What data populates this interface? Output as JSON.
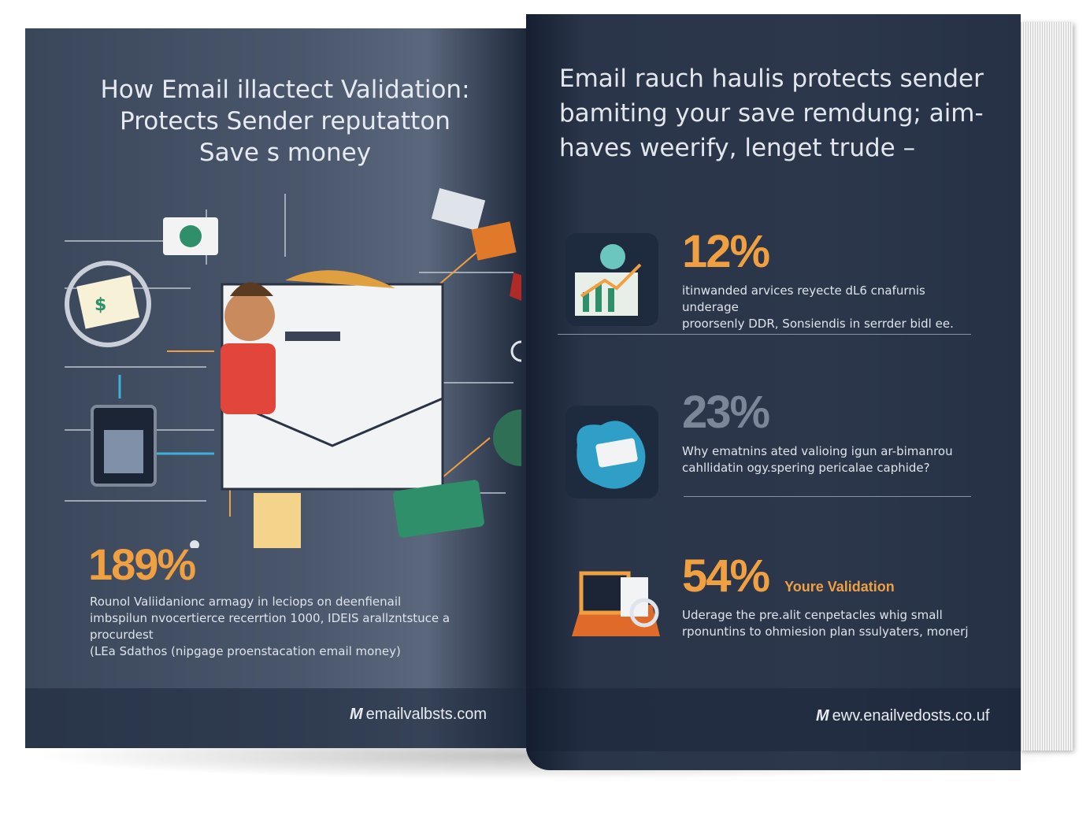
{
  "left_page": {
    "title_lines": [
      "How Email illactect Validation:",
      "Protects Sender reputatton",
      "Save s money"
    ],
    "stat": "189%",
    "body_lines": [
      "Rounol Valiidanionc armagy in leciops on deenfienail",
      "imbspilun nvocertierce recerrtion 1000, IDEIS arallzntstuce a procurdest",
      "(LEa Sdathos (nipgage proenstacation email money)"
    ],
    "footer_logo": "emailvalbsts.com"
  },
  "right_page": {
    "title_lines": [
      "Email rauch haulis protects sender",
      "bamiting your save remdung; aim-",
      "haves weerify, lenget trude –"
    ],
    "stats": [
      {
        "value": "12%",
        "color": "#f0a040",
        "icon": "chart-growth-icon",
        "desc_lines": [
          "itinwanded arvices reyecte dL6 cnafurnis underage",
          "proorsenly DDR, Sonsiendis in serrder bidl ee."
        ]
      },
      {
        "value": "23%",
        "color": "#7b8698",
        "icon": "puzzle-card-icon",
        "desc_lines": [
          "Why ematnins ated valioing igun ar-bimanrou",
          "cahllidatin ogy.spering pericalae caphide?"
        ]
      },
      {
        "value": "54%",
        "color": "#f0a040",
        "icon": "video-document-icon",
        "subtitle": "Youre Validation",
        "desc_lines": [
          "Uderage the pre.alit cenpetacles whig small",
          "rponuntins to ohmiesion plan ssulyaters, monerj"
        ]
      }
    ],
    "footer_logo": "ewv.enailvedosts.co.uf"
  },
  "colors": {
    "accent": "#f0a040",
    "page_bg": "#2c374b"
  }
}
